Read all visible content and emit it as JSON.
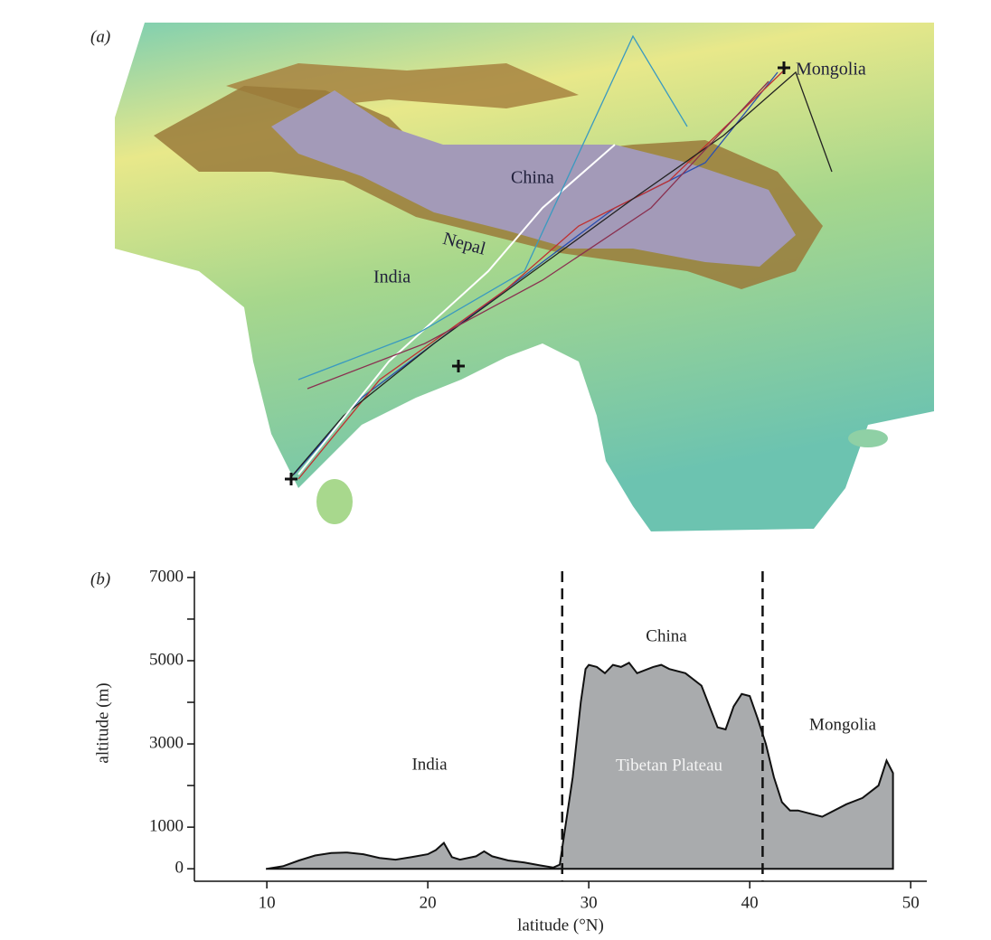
{
  "panel_a": {
    "label": "(a)",
    "places": {
      "mongolia": "Mongolia",
      "china": "China",
      "nepal": "Nepal",
      "india": "India"
    }
  },
  "chart_data": {
    "type": "area",
    "label": "(b)",
    "x_label": "latitude (°N)",
    "y_label": "altitude (m)",
    "x": [
      10,
      11,
      12,
      13,
      14,
      15,
      16,
      17,
      18,
      19,
      20,
      20.5,
      21,
      21.5,
      22,
      23,
      23.5,
      24,
      25,
      26,
      27,
      27.8,
      28.2,
      28.5,
      29,
      29.5,
      29.8,
      30,
      30.5,
      31,
      31.5,
      32,
      32.5,
      33,
      34,
      34.5,
      35,
      36,
      37,
      37.5,
      38,
      38.5,
      39,
      39.5,
      40,
      40.5,
      41,
      41.5,
      42,
      42.5,
      43,
      44,
      44.5,
      45,
      46,
      47,
      48,
      48.5,
      48.9
    ],
    "values": [
      0,
      60,
      200,
      320,
      380,
      390,
      350,
      260,
      220,
      280,
      350,
      450,
      620,
      280,
      220,
      300,
      420,
      300,
      200,
      150,
      80,
      30,
      100,
      900,
      2200,
      4000,
      4800,
      4900,
      4850,
      4700,
      4900,
      4850,
      4950,
      4700,
      4850,
      4900,
      4800,
      4700,
      4400,
      3900,
      3400,
      3350,
      3900,
      4200,
      4150,
      3600,
      3000,
      2200,
      1600,
      1400,
      1400,
      1300,
      1250,
      1350,
      1550,
      1700,
      2000,
      2600,
      2300
    ],
    "color": "#a9abad",
    "xlim": [
      5.5,
      51
    ],
    "ylim": [
      -300,
      7150
    ],
    "xticks": [
      10,
      20,
      30,
      40,
      50
    ],
    "yticks": [
      0,
      1000,
      3000,
      5000,
      7000
    ],
    "yticks_minor": [
      2000,
      4000,
      6000
    ],
    "vlines": [
      28.35,
      40.8
    ],
    "annotations": {
      "india": "India",
      "china": "China",
      "mongolia": "Mongolia",
      "plateau": "Tibetan Plateau"
    }
  }
}
